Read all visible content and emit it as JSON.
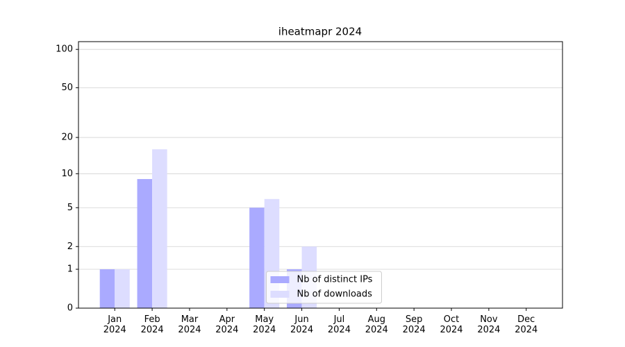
{
  "chart_data": {
    "type": "bar",
    "title": "iheatmapr 2024",
    "categories": [
      "Jan 2024",
      "Feb 2024",
      "Mar 2024",
      "Apr 2024",
      "May 2024",
      "Jun 2024",
      "Jul 2024",
      "Aug 2024",
      "Sep 2024",
      "Oct 2024",
      "Nov 2024",
      "Dec 2024"
    ],
    "series": [
      {
        "name": "Nb of distinct IPs",
        "color": "#aaaaff",
        "values": [
          1,
          9,
          0,
          0,
          5,
          1,
          0,
          0,
          0,
          0,
          0,
          0
        ]
      },
      {
        "name": "Nb of downloads",
        "color": "#ddddff",
        "values": [
          1,
          16,
          0,
          0,
          6,
          2,
          0,
          0,
          0,
          0,
          0,
          0
        ]
      }
    ],
    "ylim": [
      0,
      115
    ],
    "yticks": [
      0,
      1,
      2,
      5,
      10,
      20,
      50,
      100
    ],
    "yscale": "symlog",
    "grid": true,
    "legend": "lower center"
  }
}
